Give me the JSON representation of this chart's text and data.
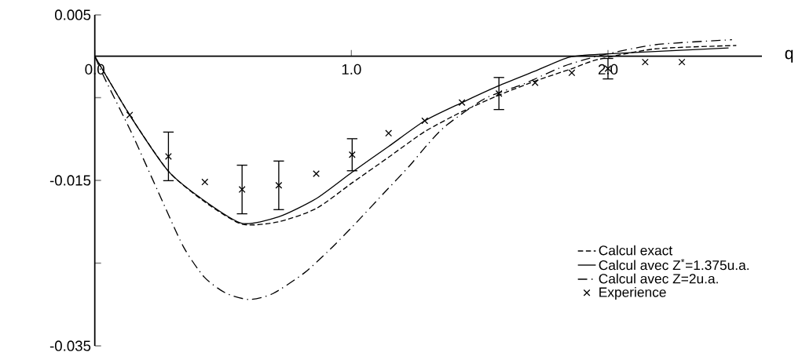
{
  "chart_data": {
    "type": "line",
    "xlabel": "q",
    "xlim": [
      0,
      2.6
    ],
    "ylim": [
      -0.035,
      0.005
    ],
    "xticks": [
      {
        "value": 0,
        "label": "0.0"
      },
      {
        "value": 1,
        "label": "1.0"
      },
      {
        "value": 2,
        "label": "2.0"
      }
    ],
    "yticks": [
      0.005,
      {
        "value": -0.005,
        "label": null
      },
      -0.015,
      {
        "value": -0.025,
        "label": null
      },
      -0.035
    ],
    "legend": "bottom right",
    "grid": false,
    "series": [
      {
        "name": "Calcul exact",
        "type": "line",
        "line_style": "dashed",
        "color": "#000000",
        "x": [
          0,
          0.136,
          0.287,
          0.429,
          0.574,
          0.717,
          0.863,
          1.003,
          1.145,
          1.286,
          1.431,
          1.575,
          1.716,
          1.859,
          1.96,
          2.185,
          2.5
        ],
        "values": [
          0,
          -0.0071,
          -0.0139,
          -0.0176,
          -0.0203,
          -0.02,
          -0.0184,
          -0.0153,
          -0.0122,
          -0.0091,
          -0.0067,
          -0.0047,
          -0.003,
          -0.0015,
          -0.0004,
          0.0009,
          0.0013
        ]
      },
      {
        "name": "Calcul avec Z$^{*}$=1.375u.a.",
        "type": "line",
        "line_style": "solid",
        "color": "#000000",
        "x": [
          0,
          0.136,
          0.287,
          0.429,
          0.574,
          0.717,
          0.863,
          1.003,
          1.145,
          1.286,
          1.431,
          1.572,
          1.716,
          1.85,
          2.0,
          2.2,
          2.47
        ],
        "values": [
          0,
          -0.0071,
          -0.0139,
          -0.0175,
          -0.0202,
          -0.0194,
          -0.0172,
          -0.014,
          -0.0109,
          -0.0078,
          -0.0056,
          -0.0036,
          -0.0018,
          -0.0001,
          0.0003,
          0.0006,
          0.001
        ]
      },
      {
        "name": "Calcul avec Z=2u.a.",
        "type": "line",
        "line_style": "dashdot",
        "color": "#000000",
        "x": [
          0,
          0.039,
          0.141,
          0.243,
          0.345,
          0.427,
          0.509,
          0.601,
          0.693,
          0.816,
          0.918,
          1.01,
          1.143,
          1.225,
          1.296,
          1.368,
          1.521,
          1.675,
          1.828,
          1.971,
          2.185,
          2.483
        ],
        "values": [
          0,
          -0.0027,
          -0.0091,
          -0.0161,
          -0.023,
          -0.0267,
          -0.0286,
          -0.0294,
          -0.0287,
          -0.0262,
          -0.0233,
          -0.0204,
          -0.016,
          -0.0133,
          -0.0107,
          -0.0084,
          -0.0051,
          -0.0033,
          -0.0012,
          0.0001,
          0.0014,
          0.002
        ]
      },
      {
        "name": "Experience",
        "type": "scatter",
        "marker": "cross",
        "color": "#000000",
        "x": [
          0.136,
          0.287,
          0.429,
          0.574,
          0.717,
          0.863,
          1.003,
          1.145,
          1.286,
          1.431,
          1.575,
          1.716,
          1.859,
          2.0,
          2.145,
          2.288
        ],
        "values": [
          -0.0071,
          -0.0121,
          -0.0152,
          -0.0161,
          -0.0156,
          -0.0142,
          -0.0119,
          -0.0093,
          -0.0078,
          -0.0056,
          -0.0045,
          -0.0032,
          -0.002,
          -0.0015,
          -0.0007,
          -0.0007
        ],
        "errors": [
          null,
          0.003,
          null,
          0.003,
          0.003,
          null,
          0.002,
          null,
          null,
          null,
          0.002,
          null,
          null,
          0.0013,
          null,
          null
        ]
      }
    ]
  }
}
